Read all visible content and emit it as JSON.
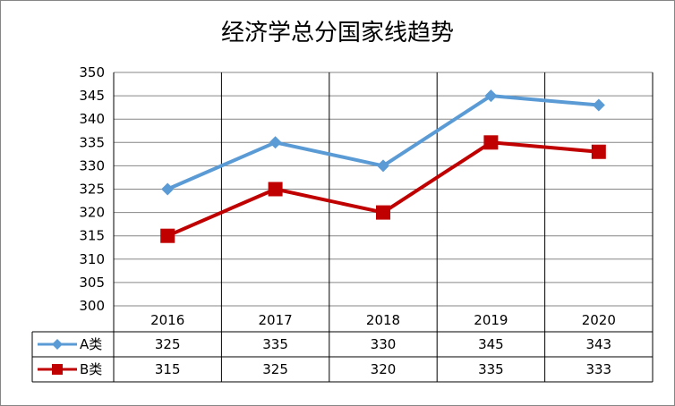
{
  "chart_data": {
    "type": "line",
    "title": "经济学总分国家线趋势",
    "categories": [
      "2016",
      "2017",
      "2018",
      "2019",
      "2020"
    ],
    "series": [
      {
        "name": "A类",
        "values": [
          325,
          335,
          330,
          345,
          343
        ],
        "color": "#5B9BD5",
        "marker": "diamond"
      },
      {
        "name": "B类",
        "values": [
          315,
          325,
          320,
          335,
          333
        ],
        "color": "#C00000",
        "marker": "square"
      }
    ],
    "yticks": [
      "300",
      "305",
      "310",
      "315",
      "320",
      "325",
      "330",
      "335",
      "340",
      "345",
      "350"
    ],
    "ylim": [
      300,
      350
    ],
    "grid": true,
    "legend": "data-table"
  }
}
